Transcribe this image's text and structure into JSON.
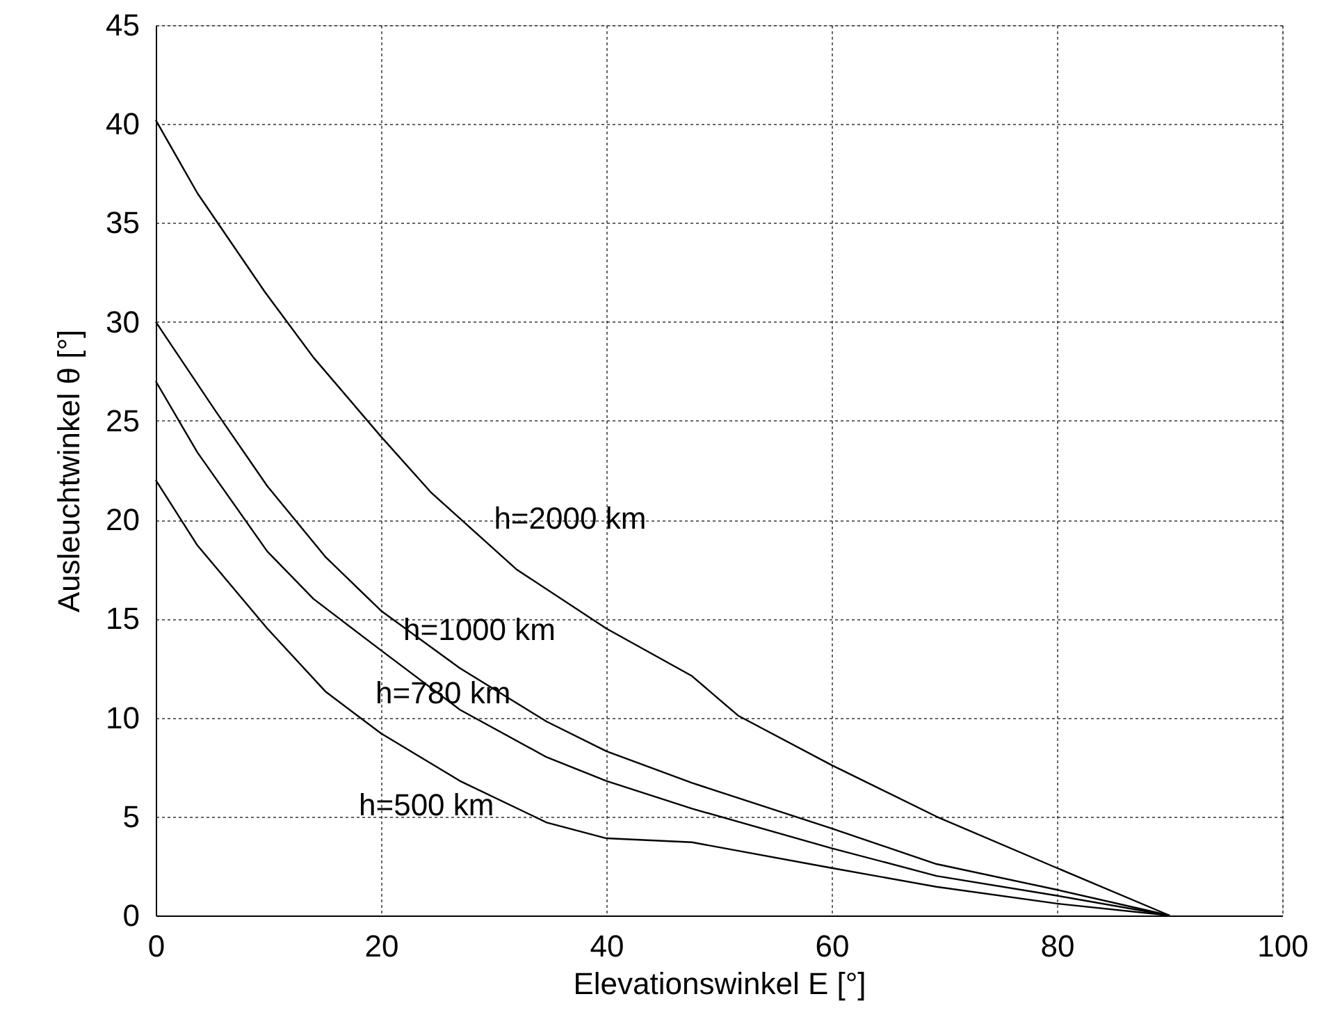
{
  "chart_data": {
    "type": "line",
    "xlabel": "Elevationswinkel E [°]",
    "ylabel": "Ausleuchtwinkel θ [°]",
    "xlim": [
      0,
      100
    ],
    "xticks": [
      0,
      20,
      40,
      60,
      80,
      100
    ],
    "ylim": [
      0,
      45
    ],
    "yticks": [
      0,
      5,
      10,
      15,
      20,
      25,
      30,
      35,
      40,
      45
    ],
    "grid": true,
    "marker": "none",
    "line_style": "solid",
    "series": [
      {
        "name": "h=2000 km",
        "color": "#000000",
        "x": [
          0,
          3.7,
          9.7,
          14,
          20,
          24.4,
          32,
          40,
          47.6,
          51.7,
          60,
          69.3,
          80,
          90
        ],
        "values": [
          40.2,
          36.5,
          31.5,
          28.2,
          24.2,
          21.4,
          17.5,
          14.5,
          12.1,
          10.1,
          7.6,
          5.0,
          2.4,
          0
        ]
      },
      {
        "name": "h=1000 km",
        "color": "#000000",
        "x": [
          0,
          5.3,
          9.9,
          15.1,
          20,
          27,
          34.7,
          40,
          47.6,
          60,
          69.3,
          80,
          90
        ],
        "values": [
          30.0,
          25.5,
          21.7,
          18.1,
          15.4,
          12.5,
          9.8,
          8.3,
          6.7,
          4.4,
          2.6,
          1.3,
          0
        ]
      },
      {
        "name": "h=780 km",
        "color": "#000000",
        "x": [
          0,
          3.7,
          9.9,
          14,
          20,
          27,
          34.7,
          40,
          47.6,
          60,
          69.3,
          80,
          90
        ],
        "values": [
          27.0,
          23.4,
          18.4,
          16.0,
          13.4,
          10.4,
          8.0,
          6.8,
          5.4,
          3.4,
          2.0,
          1.0,
          0
        ]
      },
      {
        "name": "h=500 km",
        "color": "#000000",
        "x": [
          0,
          3.7,
          9.9,
          15.1,
          20,
          27,
          34.7,
          40,
          47.6,
          60,
          69.3,
          80,
          90
        ],
        "values": [
          22.0,
          18.7,
          14.5,
          11.3,
          9.2,
          6.8,
          4.7,
          3.9,
          3.7,
          2.4,
          1.45,
          0.6,
          0
        ]
      }
    ]
  }
}
